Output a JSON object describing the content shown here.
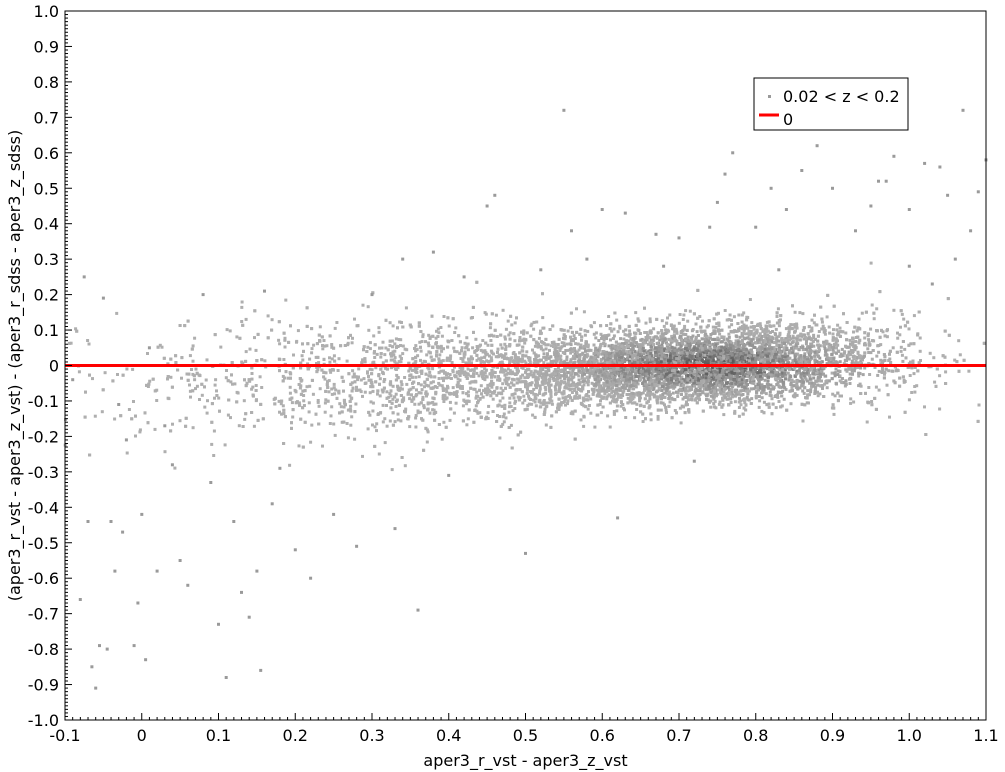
{
  "chart_data": {
    "type": "scatter",
    "xlabel": "aper3_r_vst - aper3_z_vst",
    "ylabel": "(aper3_r_vst - aper3_z_vst) - (aper3_r_sdss - aper3_z_sdss)",
    "xlim": [
      -0.1,
      1.1
    ],
    "ylim": [
      -1.0,
      1.0
    ],
    "x_ticks": [
      "-0.1",
      "0",
      "0.1",
      "0.2",
      "0.3",
      "0.4",
      "0.5",
      "0.6",
      "0.7",
      "0.8",
      "0.9",
      "1.0",
      "1.1"
    ],
    "y_ticks": [
      "1.0",
      "0.9",
      "0.8",
      "0.7",
      "0.6",
      "0.5",
      "0.4",
      "0.3",
      "0.2",
      "0.1",
      "0",
      "-0.1",
      "-0.2",
      "-0.3",
      "-0.4",
      "-0.5",
      "-0.6",
      "-0.7",
      "-0.8",
      "-0.9",
      "-1.0"
    ],
    "grid": false,
    "legend_position": "top-right",
    "series": [
      {
        "name": "0.02 < z < 0.2",
        "kind": "points",
        "color": "#9a9a9a",
        "density_center": [
          0.74,
          0.0
        ],
        "points": [
          [
            -0.09,
            -0.04
          ],
          [
            -0.08,
            -0.66
          ],
          [
            -0.075,
            0.25
          ],
          [
            -0.07,
            -0.44
          ],
          [
            -0.065,
            -0.85
          ],
          [
            -0.06,
            -0.91
          ],
          [
            -0.055,
            -0.79
          ],
          [
            -0.05,
            0.19
          ],
          [
            -0.045,
            -0.8
          ],
          [
            -0.04,
            -0.44
          ],
          [
            -0.035,
            -0.58
          ],
          [
            -0.03,
            -0.11
          ],
          [
            -0.025,
            -0.47
          ],
          [
            -0.02,
            -0.21
          ],
          [
            -0.01,
            -0.79
          ],
          [
            -0.005,
            -0.67
          ],
          [
            0.0,
            -0.42
          ],
          [
            0.005,
            -0.83
          ],
          [
            0.01,
            0.05
          ],
          [
            0.02,
            -0.58
          ],
          [
            0.03,
            -0.17
          ],
          [
            0.04,
            -0.28
          ],
          [
            0.05,
            -0.55
          ],
          [
            0.06,
            -0.62
          ],
          [
            0.07,
            0.0
          ],
          [
            0.08,
            0.2
          ],
          [
            0.09,
            -0.33
          ],
          [
            0.1,
            -0.73
          ],
          [
            0.11,
            -0.88
          ],
          [
            0.12,
            -0.44
          ],
          [
            0.13,
            -0.64
          ],
          [
            0.14,
            -0.71
          ],
          [
            0.15,
            -0.58
          ],
          [
            0.155,
            -0.86
          ],
          [
            0.16,
            0.21
          ],
          [
            0.17,
            -0.39
          ],
          [
            0.18,
            -0.29
          ],
          [
            0.2,
            -0.52
          ],
          [
            0.22,
            -0.6
          ],
          [
            0.25,
            -0.42
          ],
          [
            0.28,
            -0.51
          ],
          [
            0.3,
            0.2
          ],
          [
            0.33,
            -0.46
          ],
          [
            0.34,
            0.3
          ],
          [
            0.36,
            -0.69
          ],
          [
            0.38,
            0.32
          ],
          [
            0.4,
            -0.31
          ],
          [
            0.42,
            0.25
          ],
          [
            0.45,
            0.45
          ],
          [
            0.46,
            0.48
          ],
          [
            0.48,
            -0.35
          ],
          [
            0.5,
            -0.53
          ],
          [
            0.52,
            0.27
          ],
          [
            0.55,
            0.72
          ],
          [
            0.56,
            0.38
          ],
          [
            0.58,
            0.3
          ],
          [
            0.6,
            0.44
          ],
          [
            0.62,
            -0.43
          ],
          [
            0.63,
            0.43
          ],
          [
            0.67,
            0.37
          ],
          [
            0.68,
            0.28
          ],
          [
            0.7,
            0.36
          ],
          [
            0.72,
            -0.27
          ],
          [
            0.74,
            0.39
          ],
          [
            0.75,
            0.46
          ],
          [
            0.76,
            0.54
          ],
          [
            0.77,
            0.6
          ],
          [
            0.8,
            0.39
          ],
          [
            0.82,
            0.5
          ],
          [
            0.83,
            0.27
          ],
          [
            0.84,
            0.44
          ],
          [
            0.86,
            0.55
          ],
          [
            0.88,
            0.62
          ],
          [
            0.9,
            0.5
          ],
          [
            0.93,
            0.38
          ],
          [
            0.95,
            0.45
          ],
          [
            0.97,
            0.52
          ],
          [
            0.98,
            0.59
          ],
          [
            1.0,
            0.44
          ],
          [
            1.02,
            0.57
          ],
          [
            1.04,
            0.56
          ],
          [
            1.05,
            0.48
          ],
          [
            1.07,
            0.72
          ],
          [
            1.08,
            0.38
          ],
          [
            1.09,
            0.49
          ],
          [
            1.1,
            0.58
          ],
          [
            1.0,
            0.28
          ],
          [
            1.03,
            0.23
          ],
          [
            1.06,
            0.3
          ],
          [
            0.96,
            0.52
          ]
        ]
      },
      {
        "name": "0",
        "kind": "line",
        "color": "#ff0000",
        "x": [
          -0.1,
          1.1
        ],
        "y": [
          0,
          0
        ]
      }
    ]
  },
  "legend": {
    "entries": [
      {
        "label": "0.02 < z < 0.2"
      },
      {
        "label": "0"
      }
    ]
  }
}
